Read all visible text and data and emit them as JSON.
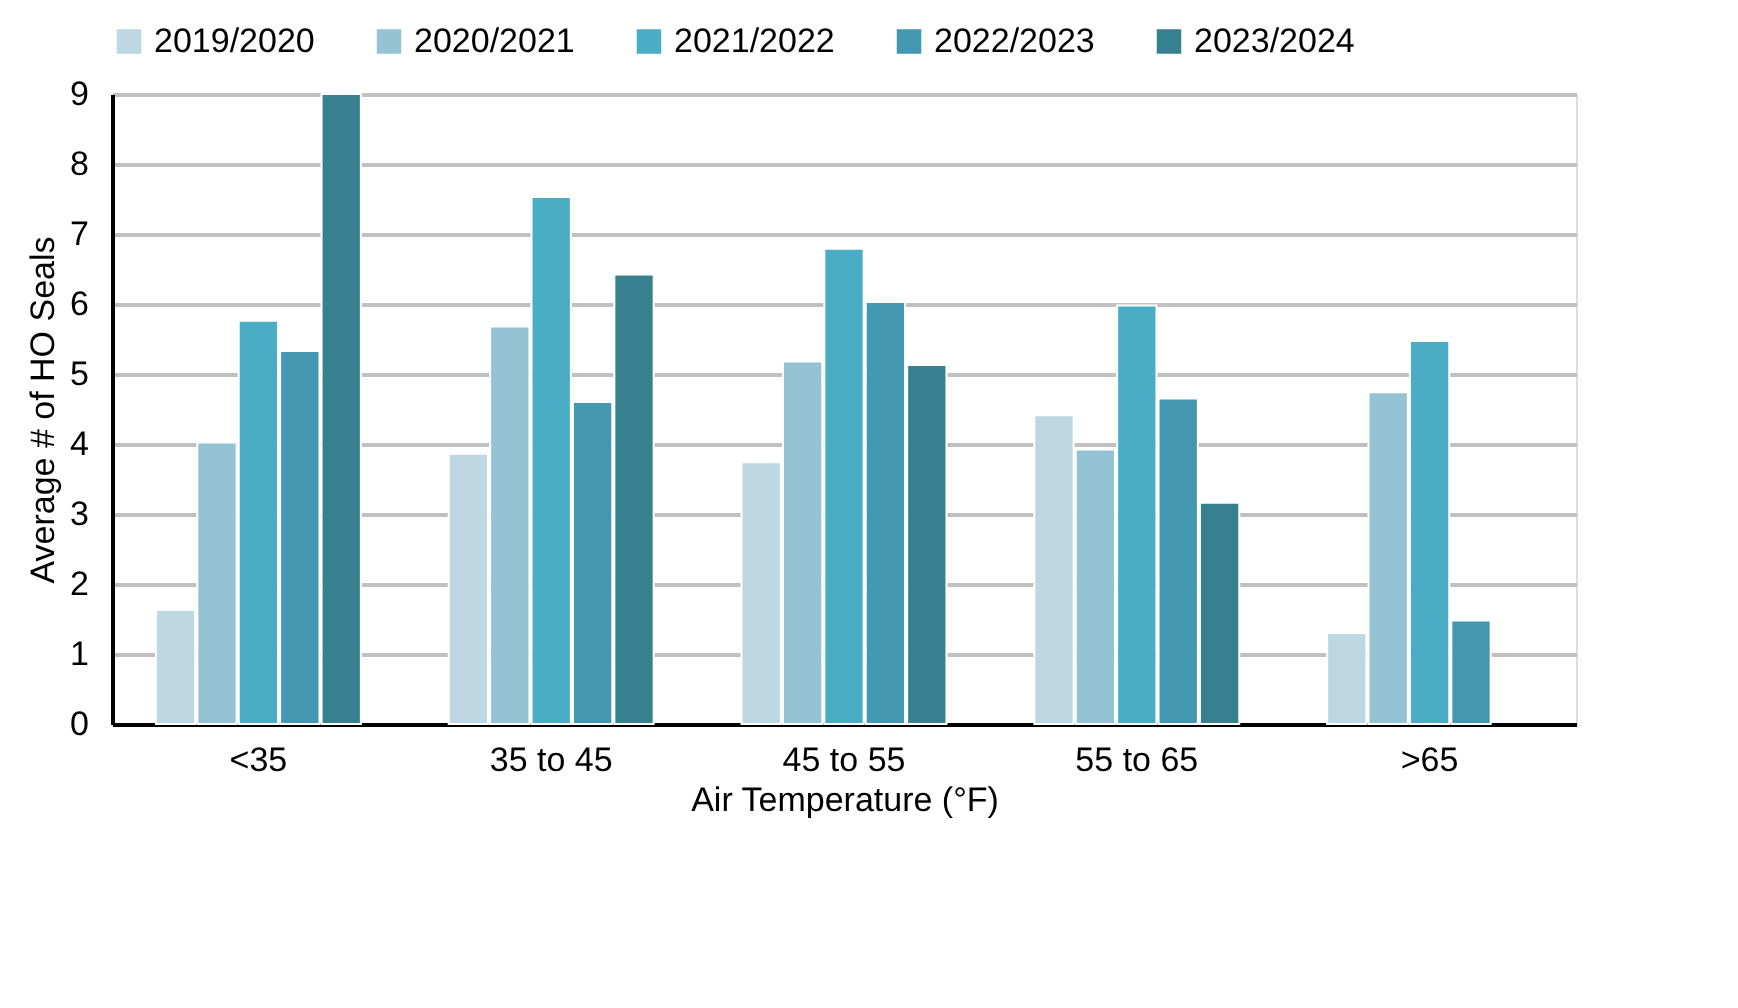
{
  "chart_data": {
    "type": "bar",
    "xlabel": "Air Temperature (°F)",
    "ylabel": "Average # of HO Seals",
    "categories": [
      "<35",
      "35 to 45",
      "45 to 55",
      "55 to 65",
      ">65"
    ],
    "series": [
      {
        "name": "2019/2020",
        "color": "#bdd7e3",
        "values": [
          1.63,
          3.86,
          3.74,
          4.41,
          1.3
        ]
      },
      {
        "name": "2020/2021",
        "color": "#94c3d4",
        "values": [
          4.02,
          5.68,
          5.18,
          3.92,
          4.74
        ]
      },
      {
        "name": "2021/2022",
        "color": "#4bacc6",
        "values": [
          5.76,
          7.53,
          6.79,
          5.98,
          5.47
        ]
      },
      {
        "name": "2022/2023",
        "color": "#4397b0",
        "values": [
          5.33,
          4.6,
          6.03,
          4.65,
          1.48
        ]
      },
      {
        "name": "2023/2024",
        "color": "#37808f",
        "values": [
          9.0,
          6.42,
          5.13,
          3.16,
          null
        ]
      }
    ],
    "ylim": [
      0,
      9
    ],
    "yticks": [
      0,
      1,
      2,
      3,
      4,
      5,
      6,
      7,
      8,
      9
    ],
    "grid": "y",
    "legend": "top"
  }
}
